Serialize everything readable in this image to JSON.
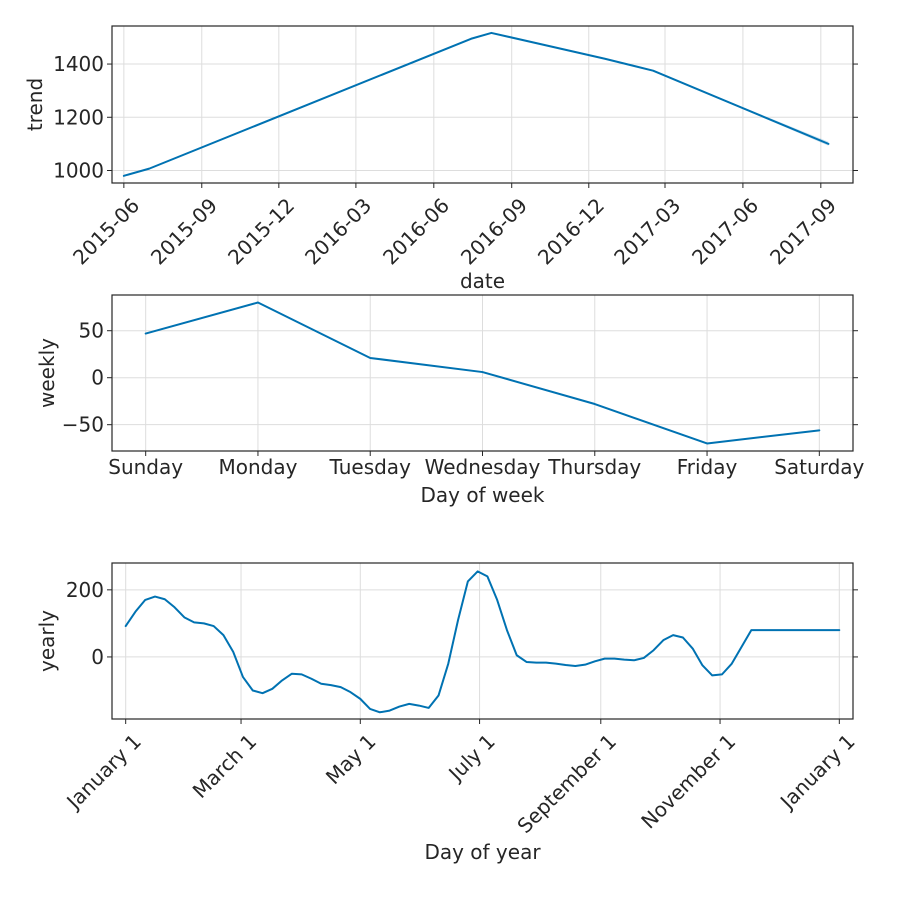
{
  "colors": {
    "line": "#0072B2",
    "band": "#0072B2",
    "grid": "#dddddd",
    "axis": "#262626"
  },
  "chart_data": [
    {
      "type": "line",
      "xlabel": "date",
      "ylabel": "trend",
      "grid": true,
      "xlim": [
        "2015-05-18",
        "2017-10-09"
      ],
      "ylim": [
        953,
        1543
      ],
      "xticks": [
        "2015-06-01",
        "2015-09-01",
        "2015-12-01",
        "2016-03-01",
        "2016-06-01",
        "2016-09-01",
        "2016-12-01",
        "2017-03-01",
        "2017-06-01",
        "2017-09-01"
      ],
      "xtick_labels": [
        "2015-06",
        "2015-09",
        "2015-12",
        "2016-03",
        "2016-06",
        "2016-09",
        "2016-12",
        "2017-03",
        "2017-06",
        "2017-09"
      ],
      "yticks": [
        1000,
        1200,
        1400
      ],
      "x": [
        "2015-06-01",
        "2015-07-01",
        "2016-07-15",
        "2016-08-08",
        "2016-12-20",
        "2017-02-15",
        "2017-09-10"
      ],
      "y": [
        980,
        1007,
        1495,
        1517,
        1420,
        1375,
        1100
      ],
      "uncertainty_upper": [
        980,
        1007,
        1495,
        1517,
        1420,
        1375,
        1108
      ],
      "uncertainty_lower": [
        980,
        1007,
        1495,
        1517,
        1420,
        1375,
        1093
      ]
    },
    {
      "type": "line",
      "xlabel": "Day of week",
      "ylabel": "weekly",
      "grid": true,
      "categories": [
        "Sunday",
        "Monday",
        "Tuesday",
        "Wednesday",
        "Thursday",
        "Friday",
        "Saturday"
      ],
      "values": [
        47,
        80,
        21,
        6,
        -28,
        -70,
        -56
      ],
      "ylim": [
        -78,
        88
      ],
      "yticks": [
        50,
        0,
        -50
      ],
      "ytick_labels": [
        "50",
        "0",
        "−50"
      ]
    },
    {
      "type": "line",
      "xlabel": "Day of year",
      "ylabel": "yearly",
      "grid": true,
      "xlim": [
        -7,
        372
      ],
      "ylim": [
        -185,
        280
      ],
      "xticks": [
        0,
        59,
        120,
        181,
        243,
        304,
        365
      ],
      "xtick_labels": [
        "January 1",
        "March 1",
        "May 1",
        "July 1",
        "September 1",
        "November 1",
        "January 1"
      ],
      "yticks": [
        200,
        0
      ],
      "x": [
        0,
        5,
        10,
        15,
        20,
        25,
        30,
        35,
        40,
        45,
        50,
        55,
        60,
        65,
        70,
        75,
        80,
        85,
        90,
        95,
        100,
        105,
        110,
        115,
        120,
        125,
        130,
        135,
        140,
        145,
        150,
        155,
        160,
        165,
        170,
        175,
        180,
        185,
        190,
        195,
        200,
        205,
        210,
        215,
        220,
        225,
        230,
        235,
        240,
        245,
        250,
        255,
        260,
        265,
        270,
        275,
        280,
        285,
        290,
        295,
        300,
        305,
        310,
        315,
        320,
        325,
        330,
        335,
        340,
        345,
        350,
        355,
        360,
        365
      ],
      "y": [
        92,
        135,
        170,
        180,
        172,
        148,
        118,
        103,
        100,
        92,
        65,
        15,
        -60,
        -100,
        -108,
        -95,
        -70,
        -50,
        -52,
        -65,
        -80,
        -84,
        -90,
        -105,
        -125,
        -155,
        -165,
        -160,
        -148,
        -140,
        -145,
        -152,
        -115,
        -20,
        110,
        225,
        255,
        240,
        170,
        80,
        5,
        -15,
        -17,
        -17,
        -20,
        -24,
        -27,
        -23,
        -13,
        -5,
        -5,
        -8,
        -10,
        -3,
        20,
        50,
        65,
        58,
        25,
        -25,
        -55,
        -52,
        -20,
        30,
        80,
        80,
        80,
        80,
        80,
        80,
        80,
        80,
        80,
        80
      ]
    }
  ]
}
